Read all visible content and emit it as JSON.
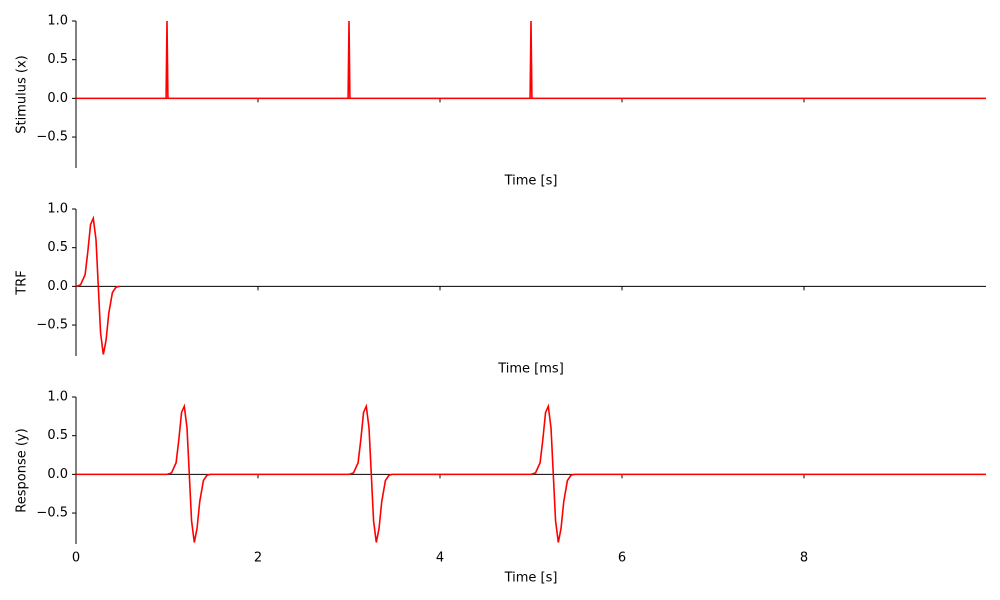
{
  "chart_data": [
    {
      "type": "line",
      "ylabel": "Stimulus (x)",
      "xlabel": "Time [s]",
      "color": "#ff0000",
      "x": [
        0,
        0.99,
        1,
        1.01,
        2.99,
        3,
        3.01,
        4.99,
        5,
        5.01,
        10
      ],
      "values": [
        0,
        0,
        1,
        0,
        0,
        1,
        0,
        0,
        1,
        0,
        0
      ],
      "xlim": [
        0,
        10
      ],
      "xticks": [
        0,
        2,
        4,
        6,
        8
      ],
      "show_xtick_labels": false,
      "ylim": [
        -0.9,
        1.0
      ],
      "yticks": [
        {
          "value": -0.5,
          "label": "−0.5"
        },
        {
          "value": 0,
          "label": "0.0"
        },
        0.5,
        {
          "value": 1,
          "label": "1.0"
        }
      ]
    },
    {
      "type": "line",
      "ylabel": "TRF",
      "xlabel": "Time [ms]",
      "color": "#ff0000",
      "x": [
        0,
        0.05,
        0.1,
        0.13,
        0.16,
        0.19,
        0.22,
        0.245,
        0.27,
        0.3,
        0.33,
        0.36,
        0.4,
        0.44,
        0.48
      ],
      "values": [
        0,
        0.02,
        0.15,
        0.45,
        0.8,
        0.88,
        0.6,
        0,
        -0.6,
        -0.88,
        -0.7,
        -0.35,
        -0.08,
        -0.01,
        0
      ],
      "xlim": [
        0,
        10
      ],
      "xticks": [
        0,
        2,
        4,
        6,
        8
      ],
      "show_xtick_labels": false,
      "ylim": [
        -0.9,
        1.0
      ],
      "yticks": [
        {
          "value": -0.5,
          "label": "−0.5"
        },
        {
          "value": 0,
          "label": "0.0"
        },
        0.5,
        {
          "value": 1,
          "label": "1.0"
        }
      ]
    },
    {
      "type": "line",
      "ylabel": "Response (y)",
      "xlabel": "Time [s]",
      "color": "#ff0000",
      "x": [
        0,
        1,
        1.05,
        1.1,
        1.13,
        1.16,
        1.19,
        1.22,
        1.245,
        1.27,
        1.3,
        1.33,
        1.36,
        1.4,
        1.44,
        1.48,
        3,
        3.05,
        3.1,
        3.13,
        3.16,
        3.19,
        3.22,
        3.245,
        3.27,
        3.3,
        3.33,
        3.36,
        3.4,
        3.44,
        3.48,
        5,
        5.05,
        5.1,
        5.13,
        5.16,
        5.19,
        5.22,
        5.245,
        5.27,
        5.3,
        5.33,
        5.36,
        5.4,
        5.44,
        5.48,
        10
      ],
      "values": [
        0,
        0,
        0.02,
        0.15,
        0.45,
        0.8,
        0.88,
        0.6,
        0,
        -0.6,
        -0.88,
        -0.7,
        -0.35,
        -0.08,
        -0.01,
        0,
        0,
        0.02,
        0.15,
        0.45,
        0.8,
        0.88,
        0.6,
        0,
        -0.6,
        -0.88,
        -0.7,
        -0.35,
        -0.08,
        -0.01,
        0,
        0,
        0.02,
        0.15,
        0.45,
        0.8,
        0.88,
        0.6,
        0,
        -0.6,
        -0.88,
        -0.7,
        -0.35,
        -0.08,
        -0.01,
        0,
        0
      ],
      "xlim": [
        0,
        10
      ],
      "xticks": [
        0,
        2,
        4,
        6,
        8
      ],
      "show_xtick_labels": true,
      "ylim": [
        -0.9,
        1.0
      ],
      "yticks": [
        {
          "value": -0.5,
          "label": "−0.5"
        },
        {
          "value": 0,
          "label": "0.0"
        },
        0.5,
        {
          "value": 1,
          "label": "1.0"
        }
      ]
    }
  ]
}
